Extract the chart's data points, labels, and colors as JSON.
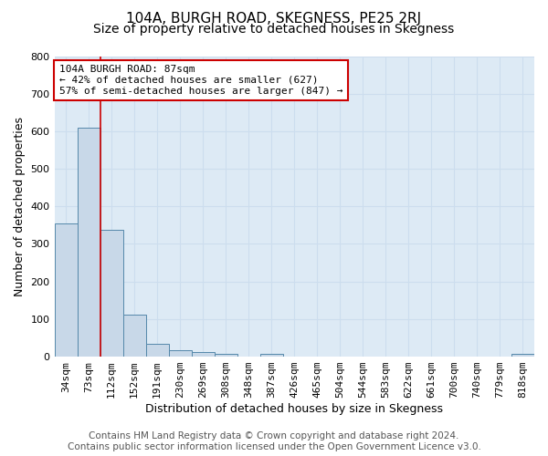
{
  "title": "104A, BURGH ROAD, SKEGNESS, PE25 2RJ",
  "subtitle": "Size of property relative to detached houses in Skegness",
  "xlabel": "Distribution of detached houses by size in Skegness",
  "ylabel": "Number of detached properties",
  "categories": [
    "34sqm",
    "73sqm",
    "112sqm",
    "152sqm",
    "191sqm",
    "230sqm",
    "269sqm",
    "308sqm",
    "348sqm",
    "387sqm",
    "426sqm",
    "465sqm",
    "504sqm",
    "544sqm",
    "583sqm",
    "622sqm",
    "661sqm",
    "700sqm",
    "740sqm",
    "779sqm",
    "818sqm"
  ],
  "bar_values": [
    355,
    610,
    338,
    113,
    35,
    18,
    13,
    8,
    0,
    8,
    0,
    0,
    0,
    0,
    0,
    0,
    0,
    0,
    0,
    0,
    8
  ],
  "bar_color": "#c8d8e8",
  "bar_edge_color": "#5588aa",
  "grid_color": "#ccddee",
  "background_color": "#ddeaf5",
  "vline_x": 1.5,
  "vline_color": "#cc0000",
  "annotation_line1": "104A BURGH ROAD: 87sqm",
  "annotation_line2": "← 42% of detached houses are smaller (627)",
  "annotation_line3": "57% of semi-detached houses are larger (847) →",
  "ylim": [
    0,
    800
  ],
  "yticks": [
    0,
    100,
    200,
    300,
    400,
    500,
    600,
    700,
    800
  ],
  "footer_line1": "Contains HM Land Registry data © Crown copyright and database right 2024.",
  "footer_line2": "Contains public sector information licensed under the Open Government Licence v3.0.",
  "title_fontsize": 11,
  "subtitle_fontsize": 10,
  "axis_label_fontsize": 9,
  "tick_fontsize": 8,
  "annotation_fontsize": 8,
  "footer_fontsize": 7.5
}
